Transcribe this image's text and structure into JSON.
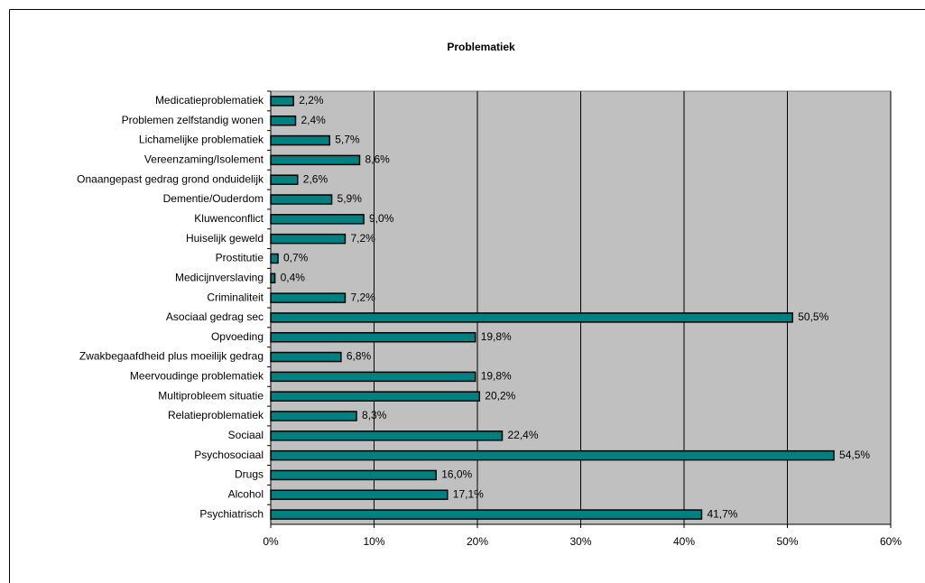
{
  "chart_data": {
    "type": "bar",
    "orientation": "horizontal",
    "title": "Problematiek",
    "categories": [
      "Medicatieproblematiek",
      "Problemen zelfstandig wonen",
      "Lichamelijke problematiek",
      "Vereenzaming/Isolement",
      "Onaangepast gedrag grond onduidelijk",
      "Dementie/Ouderdom",
      "Kluwenconflict",
      "Huiselijk geweld",
      "Prostitutie",
      "Medicijnverslaving",
      "Criminaliteit",
      "Asociaal gedrag sec",
      "Opvoeding",
      "Zwakbegaafdheid plus moeilijk gedrag",
      "Meervoudinge problematiek",
      "Multiprobleem situatie",
      "Relatieproblematiek",
      "Sociaal",
      "Psychosociaal",
      "Drugs",
      "Alcohol",
      "Psychiatrisch"
    ],
    "values": [
      2.2,
      2.4,
      5.7,
      8.6,
      2.6,
      5.9,
      9.0,
      7.2,
      0.7,
      0.4,
      7.2,
      50.5,
      19.8,
      6.8,
      19.8,
      20.2,
      8.3,
      22.4,
      54.5,
      16.0,
      17.1,
      41.7
    ],
    "value_labels": [
      "2,2%",
      "2,4%",
      "5,7%",
      "8,6%",
      "2,6%",
      "5,9%",
      "9,0%",
      "7,2%",
      "0,7%",
      "0,4%",
      "7,2%",
      "50,5%",
      "19,8%",
      "6,8%",
      "19,8%",
      "20,2%",
      "8,3%",
      "22,4%",
      "54,5%",
      "16,0%",
      "17,1%",
      "41,7%"
    ],
    "color": "#008080",
    "xlim": [
      0,
      60
    ],
    "xticks": [
      {
        "value": 0,
        "label": "0%"
      },
      {
        "value": 10,
        "label": "10%"
      },
      {
        "value": 20,
        "label": "20%"
      },
      {
        "value": 30,
        "label": "30%"
      },
      {
        "value": 40,
        "label": "40%"
      },
      {
        "value": 50,
        "label": "50%"
      },
      {
        "value": 60,
        "label": "60%"
      }
    ],
    "grid": true
  }
}
